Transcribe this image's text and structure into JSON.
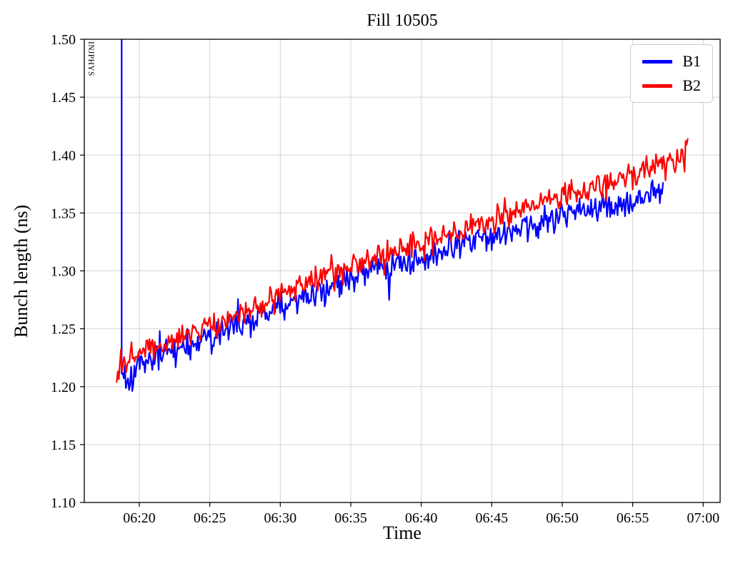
{
  "chart_data": {
    "type": "line",
    "title": "Fill 10505",
    "xlabel": "Time",
    "ylabel": "Bunch length (ns)",
    "xlim_minutes": [
      16.1,
      61.2
    ],
    "ylim": [
      1.1,
      1.5
    ],
    "x_ticks": {
      "positions": [
        20,
        25,
        30,
        35,
        40,
        45,
        50,
        55,
        60
      ],
      "labels": [
        "06:20",
        "06:25",
        "06:30",
        "06:35",
        "06:40",
        "06:45",
        "06:50",
        "06:55",
        "07:00"
      ]
    },
    "y_ticks": {
      "positions": [
        1.1,
        1.15,
        1.2,
        1.25,
        1.3,
        1.35,
        1.4,
        1.45,
        1.5
      ],
      "labels": [
        "1.10",
        "1.15",
        "1.20",
        "1.25",
        "1.30",
        "1.35",
        "1.40",
        "1.45",
        "1.50"
      ]
    },
    "grid": true,
    "grid_color": "#d4d4d4",
    "annotations": [
      {
        "text": "INJPHYS",
        "rotation_deg": 90,
        "x_minutes": 16.4,
        "y_ns": 1.5
      }
    ],
    "legend": {
      "location": "upper right",
      "entries": [
        {
          "label": "B1",
          "color": "#0000ff"
        },
        {
          "label": "B2",
          "color": "#ff0000"
        }
      ]
    },
    "sampling_interval_minutes": 0.075,
    "noise_seed": 1337,
    "series": [
      {
        "name": "B1",
        "color": "#0000ff",
        "noise_amp_ns": 0.021,
        "initial_spike": {
          "x_min": 18.75,
          "to_ns": 1.65
        },
        "anchors": [
          [
            18.75,
            1.213
          ],
          [
            19.2,
            1.205
          ],
          [
            20,
            1.221
          ],
          [
            22,
            1.229
          ],
          [
            24,
            1.238
          ],
          [
            26,
            1.248
          ],
          [
            28,
            1.259
          ],
          [
            30,
            1.268
          ],
          [
            32,
            1.279
          ],
          [
            34,
            1.29
          ],
          [
            36,
            1.298
          ],
          [
            38,
            1.306
          ],
          [
            40,
            1.313
          ],
          [
            42,
            1.321
          ],
          [
            44,
            1.328
          ],
          [
            46,
            1.334
          ],
          [
            48,
            1.341
          ],
          [
            50,
            1.348
          ],
          [
            52,
            1.353
          ],
          [
            54,
            1.359
          ],
          [
            56,
            1.367
          ],
          [
            57.2,
            1.373
          ]
        ]
      },
      {
        "name": "B2",
        "color": "#ff0000",
        "noise_amp_ns": 0.019,
        "anchors": [
          [
            18.4,
            1.212
          ],
          [
            19,
            1.225
          ],
          [
            20,
            1.231
          ],
          [
            22,
            1.239
          ],
          [
            24,
            1.247
          ],
          [
            26,
            1.257
          ],
          [
            28,
            1.269
          ],
          [
            30,
            1.28
          ],
          [
            32,
            1.29
          ],
          [
            34,
            1.299
          ],
          [
            36,
            1.308
          ],
          [
            38,
            1.317
          ],
          [
            40,
            1.325
          ],
          [
            42,
            1.333
          ],
          [
            44,
            1.34
          ],
          [
            46,
            1.348
          ],
          [
            48,
            1.357
          ],
          [
            50,
            1.366
          ],
          [
            52,
            1.372
          ],
          [
            54,
            1.38
          ],
          [
            56,
            1.388
          ],
          [
            57.5,
            1.392
          ],
          [
            58.9,
            1.401
          ]
        ]
      }
    ]
  }
}
